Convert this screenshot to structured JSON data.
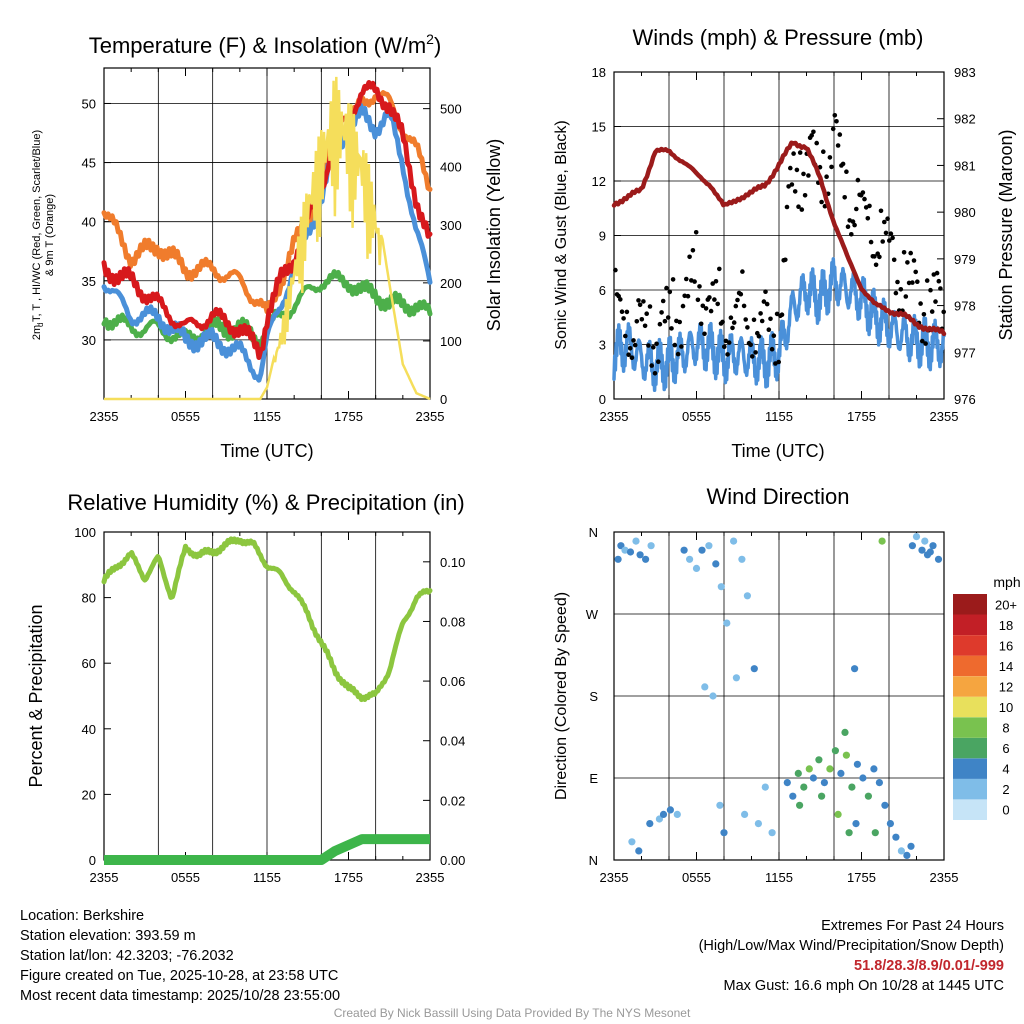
{
  "panels": {
    "temp": {
      "title": "Temperature (F) & Insolation (W/m",
      "title_sup": "2",
      "title_end": ")",
      "ylabel_left_lines": [
        "2m T, T  , HI/WC (Red, Green, Scarlet/Blue)",
        "& 9m T (Orange)"
      ],
      "ylabel_left_sub": "d",
      "ylabel_right": "Solar Insolation (Yellow)",
      "xlabel": "Time (UTC)",
      "left_ticks": [
        "30",
        "35",
        "40",
        "45",
        "50"
      ],
      "right_ticks": [
        "0",
        "100",
        "200",
        "300",
        "400",
        "500"
      ],
      "x_ticks": [
        "2355",
        "0555",
        "1155",
        "1755",
        "2355"
      ]
    },
    "wind": {
      "title": "Winds (mph) & Pressure (mb)",
      "ylabel_left": "Sonic Wind & Gust (Blue, Black)",
      "ylabel_right": "Station Pressure (Maroon)",
      "xlabel": "Time (UTC)",
      "left_ticks": [
        "0",
        "3",
        "6",
        "9",
        "12",
        "15",
        "18"
      ],
      "right_ticks": [
        "976",
        "977",
        "978",
        "979",
        "980",
        "981",
        "982",
        "983"
      ],
      "x_ticks": [
        "2355",
        "0555",
        "1155",
        "1755",
        "2355"
      ]
    },
    "rh": {
      "title": "Relative Humidity (%) & Precipitation (in)",
      "ylabel_left": "Percent & Precipitation",
      "left_ticks": [
        "0",
        "20",
        "40",
        "60",
        "80",
        "100"
      ],
      "right_ticks": [
        "0.00",
        "0.02",
        "0.04",
        "0.06",
        "0.08",
        "0.10"
      ],
      "x_ticks": [
        "2355",
        "0555",
        "1155",
        "1755",
        "2355"
      ]
    },
    "dir": {
      "title": "Wind Direction",
      "ylabel_left": "Direction (Colored By Speed)",
      "dir_ticks": [
        "N",
        "E",
        "S",
        "W",
        "N"
      ],
      "x_ticks": [
        "2355",
        "0555",
        "1155",
        "1755",
        "2355"
      ],
      "legend_title": "mph",
      "legend_labels": [
        "0",
        "2",
        "4",
        "6",
        "8",
        "10",
        "12",
        "14",
        "16",
        "18",
        "20+"
      ]
    }
  },
  "colors": {
    "temp": "#d7191c",
    "dewpoint": "#4daf4a",
    "heat_index": "#4a90d9",
    "temp_9m": "#f07c2c",
    "insolation": "#f5de5b",
    "wind": "#4a90d9",
    "gust": "#000000",
    "pressure": "#9b1b1b",
    "rh": "#8cc63f",
    "precip": "#3db54a",
    "legend": [
      "#c6e4f7",
      "#7fbde8",
      "#3f84c6",
      "#4aa562",
      "#79c24f",
      "#e8e05c",
      "#f5a540",
      "#ee6a2e",
      "#de3a2c",
      "#c21f26",
      "#9b1b1b"
    ]
  },
  "chart_data": [
    {
      "type": "line",
      "title": "Temperature (F) & Insolation (W/m2)",
      "xlabel": "Time (UTC)",
      "ylabel": "2m T, Td, HI/WC (Red, Green, Scarlet/Blue) & 9m T (Orange)",
      "y2label": "Solar Insolation (Yellow)",
      "x_hours": [
        0,
        2,
        4,
        6,
        8,
        10,
        11.5,
        12,
        13,
        14,
        15,
        16,
        17,
        18,
        19,
        20,
        21,
        22,
        23,
        24
      ],
      "ylim": [
        25,
        53
      ],
      "y2lim": [
        0,
        570
      ],
      "series": [
        {
          "name": "2m T",
          "axis": "left",
          "values": [
            36,
            35,
            33,
            31,
            32,
            31,
            29,
            32,
            35,
            37,
            40,
            43,
            47,
            49,
            51,
            51,
            50,
            47,
            42,
            38
          ]
        },
        {
          "name": "Td",
          "axis": "left",
          "values": [
            32,
            31,
            31,
            30,
            31,
            31,
            30,
            31,
            32,
            33,
            34,
            35,
            35,
            35,
            34,
            34,
            33,
            33,
            33,
            32
          ]
        },
        {
          "name": "HI/WC",
          "axis": "left",
          "values": [
            35,
            32,
            32,
            30,
            30,
            29,
            27,
            30,
            33,
            36,
            39,
            42,
            46,
            48,
            49,
            48,
            49,
            45,
            39,
            35
          ]
        },
        {
          "name": "9m T",
          "axis": "left",
          "values": [
            41,
            37,
            38,
            36,
            36,
            35,
            33,
            32,
            35,
            38,
            40,
            43,
            47,
            48,
            50,
            51,
            50,
            48,
            46,
            43
          ]
        },
        {
          "name": "Insolation",
          "axis": "right",
          "values": [
            0,
            0,
            0,
            0,
            0,
            0,
            0,
            20,
            120,
            250,
            380,
            470,
            560,
            520,
            460,
            350,
            200,
            60,
            10,
            0
          ]
        }
      ]
    },
    {
      "type": "line",
      "title": "Winds (mph) & Pressure (mb)",
      "xlabel": "Time (UTC)",
      "ylabel": "Sonic Wind & Gust (Blue, Black)",
      "y2label": "Station Pressure (Maroon)",
      "x_hours": [
        0,
        1,
        2,
        3,
        4,
        5,
        6,
        7,
        8,
        9,
        10,
        11,
        12,
        13,
        14,
        15,
        16,
        17,
        18,
        19,
        20,
        21,
        22,
        23,
        24
      ],
      "ylim": [
        0,
        18
      ],
      "y2lim": [
        976,
        983
      ],
      "series": [
        {
          "name": "Sonic Wind",
          "axis": "left",
          "values": [
            2.5,
            3,
            2.2,
            1.8,
            2,
            2.5,
            3,
            2.8,
            2.2,
            2.5,
            2.2,
            2,
            2.5,
            5,
            6,
            5.5,
            6.5,
            6,
            5.5,
            4.5,
            4,
            3.5,
            3.2,
            3,
            3
          ]
        },
        {
          "name": "Gust",
          "axis": "left",
          "values": [
            4.5,
            4,
            3.5,
            3.5,
            4,
            5,
            6.5,
            5,
            4,
            4.5,
            4,
            3.5,
            4,
            12,
            13,
            12,
            14,
            11,
            10,
            9,
            8,
            6.5,
            5.5,
            5,
            4.5
          ]
        },
        {
          "name": "Station Pressure",
          "axis": "right",
          "values": [
            980.2,
            980.3,
            980.5,
            981.3,
            981.3,
            981.1,
            980.8,
            980.6,
            980.1,
            980.3,
            980.4,
            980.6,
            981.0,
            981.5,
            981.4,
            980.7,
            979.8,
            979.0,
            978.4,
            978.0,
            977.9,
            977.8,
            977.6,
            977.5,
            977.4
          ]
        }
      ]
    },
    {
      "type": "line",
      "title": "Relative Humidity (%) & Precipitation (in)",
      "xlabel": "",
      "ylabel": "Percent & Precipitation",
      "x_hours": [
        0,
        1,
        2,
        3,
        4,
        5,
        6,
        7,
        8,
        9,
        10,
        11,
        12,
        13,
        14,
        15,
        16,
        17,
        18,
        19,
        20,
        21,
        22,
        23,
        24
      ],
      "ylim": [
        0,
        100
      ],
      "y2lim": [
        0,
        0.11
      ],
      "series": [
        {
          "name": "RH",
          "axis": "left",
          "values": [
            85,
            90,
            93,
            86,
            92,
            80,
            95,
            93,
            94,
            96,
            98,
            96,
            90,
            87,
            82,
            75,
            66,
            58,
            52,
            50,
            50,
            58,
            72,
            80,
            82
          ]
        },
        {
          "name": "Precipitation",
          "axis": "right",
          "values": [
            0,
            0,
            0,
            0,
            0,
            0,
            0,
            0,
            0,
            0,
            0,
            0,
            0,
            0,
            0,
            0,
            0,
            0.003,
            0.005,
            0.007,
            0.007,
            0.007,
            0.007,
            0.007,
            0.007
          ]
        }
      ]
    },
    {
      "type": "scatter",
      "title": "Wind Direction",
      "ylabel": "Direction (Colored By Speed)",
      "y_categories": [
        "N",
        "E",
        "S",
        "W",
        "N"
      ],
      "ylim_degrees": [
        0,
        360
      ],
      "colorbar": {
        "label": "mph",
        "ticks": [
          "0",
          "2",
          "4",
          "6",
          "8",
          "10",
          "12",
          "14",
          "16",
          "18",
          "20+"
        ]
      },
      "points": [
        {
          "h": 0.3,
          "dir": 330,
          "mph": 3
        },
        {
          "h": 0.5,
          "dir": 345,
          "mph": 4
        },
        {
          "h": 0.8,
          "dir": 340,
          "mph": 2
        },
        {
          "h": 1.2,
          "dir": 338,
          "mph": 3
        },
        {
          "h": 1.6,
          "dir": 350,
          "mph": 2
        },
        {
          "h": 1.9,
          "dir": 335,
          "mph": 4
        },
        {
          "h": 2.3,
          "dir": 330,
          "mph": 3
        },
        {
          "h": 2.7,
          "dir": 345,
          "mph": 2
        },
        {
          "h": 1.3,
          "dir": 20,
          "mph": 2
        },
        {
          "h": 1.8,
          "dir": 10,
          "mph": 3
        },
        {
          "h": 2.6,
          "dir": 40,
          "mph": 3
        },
        {
          "h": 3.3,
          "dir": 45,
          "mph": 2
        },
        {
          "h": 3.6,
          "dir": 50,
          "mph": 3
        },
        {
          "h": 4.1,
          "dir": 55,
          "mph": 4
        },
        {
          "h": 4.6,
          "dir": 50,
          "mph": 2
        },
        {
          "h": 5.1,
          "dir": 340,
          "mph": 3
        },
        {
          "h": 5.5,
          "dir": 330,
          "mph": 2
        },
        {
          "h": 6.0,
          "dir": 320,
          "mph": 1
        },
        {
          "h": 6.4,
          "dir": 340,
          "mph": 3
        },
        {
          "h": 6.9,
          "dir": 345,
          "mph": 2
        },
        {
          "h": 7.4,
          "dir": 325,
          "mph": 3
        },
        {
          "h": 7.8,
          "dir": 300,
          "mph": 2
        },
        {
          "h": 8.2,
          "dir": 260,
          "mph": 1
        },
        {
          "h": 8.7,
          "dir": 350,
          "mph": 2
        },
        {
          "h": 6.6,
          "dir": 190,
          "mph": 2
        },
        {
          "h": 7.2,
          "dir": 180,
          "mph": 1
        },
        {
          "h": 7.7,
          "dir": 60,
          "mph": 2
        },
        {
          "h": 8.0,
          "dir": 30,
          "mph": 3
        },
        {
          "h": 9.3,
          "dir": 330,
          "mph": 1
        },
        {
          "h": 9.7,
          "dir": 290,
          "mph": 2
        },
        {
          "h": 9.5,
          "dir": 50,
          "mph": 2
        },
        {
          "h": 10.5,
          "dir": 40,
          "mph": 1
        },
        {
          "h": 8.9,
          "dir": 200,
          "mph": 2
        },
        {
          "h": 10.2,
          "dir": 210,
          "mph": 3
        },
        {
          "h": 11.0,
          "dir": 80,
          "mph": 2
        },
        {
          "h": 11.5,
          "dir": 30,
          "mph": 1
        },
        {
          "h": 12.6,
          "dir": 85,
          "mph": 3
        },
        {
          "h": 13.0,
          "dir": 70,
          "mph": 4
        },
        {
          "h": 13.4,
          "dir": 95,
          "mph": 6
        },
        {
          "h": 13.8,
          "dir": 80,
          "mph": 5
        },
        {
          "h": 14.2,
          "dir": 100,
          "mph": 7
        },
        {
          "h": 14.5,
          "dir": 90,
          "mph": 4
        },
        {
          "h": 14.9,
          "dir": 110,
          "mph": 6
        },
        {
          "h": 15.3,
          "dir": 85,
          "mph": 3
        },
        {
          "h": 15.7,
          "dir": 100,
          "mph": 8
        },
        {
          "h": 16.1,
          "dir": 120,
          "mph": 6
        },
        {
          "h": 16.5,
          "dir": 95,
          "mph": 4
        },
        {
          "h": 16.9,
          "dir": 115,
          "mph": 7
        },
        {
          "h": 17.3,
          "dir": 80,
          "mph": 5
        },
        {
          "h": 17.7,
          "dir": 105,
          "mph": 3
        },
        {
          "h": 18.1,
          "dir": 90,
          "mph": 4
        },
        {
          "h": 18.5,
          "dir": 70,
          "mph": 6
        },
        {
          "h": 18.9,
          "dir": 100,
          "mph": 3
        },
        {
          "h": 19.3,
          "dir": 85,
          "mph": 4
        },
        {
          "h": 19.7,
          "dir": 60,
          "mph": 3
        },
        {
          "h": 20.1,
          "dir": 40,
          "mph": 4
        },
        {
          "h": 20.5,
          "dir": 25,
          "mph": 3
        },
        {
          "h": 20.9,
          "dir": 10,
          "mph": 2
        },
        {
          "h": 21.3,
          "dir": 5,
          "mph": 4
        },
        {
          "h": 21.6,
          "dir": 15,
          "mph": 3
        },
        {
          "h": 13.5,
          "dir": 60,
          "mph": 5
        },
        {
          "h": 15.1,
          "dir": 70,
          "mph": 6
        },
        {
          "h": 16.3,
          "dir": 50,
          "mph": 7
        },
        {
          "h": 17.6,
          "dir": 40,
          "mph": 4
        },
        {
          "h": 19.0,
          "dir": 30,
          "mph": 5
        },
        {
          "h": 17.1,
          "dir": 30,
          "mph": 6
        },
        {
          "h": 16.8,
          "dir": 140,
          "mph": 6
        },
        {
          "h": 17.5,
          "dir": 210,
          "mph": 3
        },
        {
          "h": 19.5,
          "dir": 350,
          "mph": 7
        },
        {
          "h": 21.7,
          "dir": 345,
          "mph": 3
        },
        {
          "h": 22.0,
          "dir": 355,
          "mph": 2
        },
        {
          "h": 22.4,
          "dir": 340,
          "mph": 3
        },
        {
          "h": 22.8,
          "dir": 335,
          "mph": 4
        },
        {
          "h": 23.2,
          "dir": 345,
          "mph": 3
        },
        {
          "h": 23.6,
          "dir": 330,
          "mph": 4
        },
        {
          "h": 22.6,
          "dir": 350,
          "mph": 2
        },
        {
          "h": 23.0,
          "dir": 338,
          "mph": 3
        }
      ]
    }
  ],
  "footer": {
    "location": "Location: Berkshire",
    "elevation": "Station elevation: 393.59 m",
    "latlon": "Station lat/lon: 42.3203; -76.2032",
    "created": "Figure created on Tue, 2025-10-28, at 23:58 UTC",
    "recent": "Most recent data timestamp: 2025/10/28 23:55:00",
    "extremes_title": "Extremes For Past 24 Hours",
    "extremes_subtitle": "(High/Low/Max Wind/Precipitation/Snow Depth)",
    "extremes_values": "51.8/28.3/8.9/0.01/-999",
    "max_gust": "Max Gust: 16.6 mph On 10/28 at 1445 UTC",
    "credit": "Created By Nick Bassill Using Data Provided By The NYS Mesonet"
  }
}
